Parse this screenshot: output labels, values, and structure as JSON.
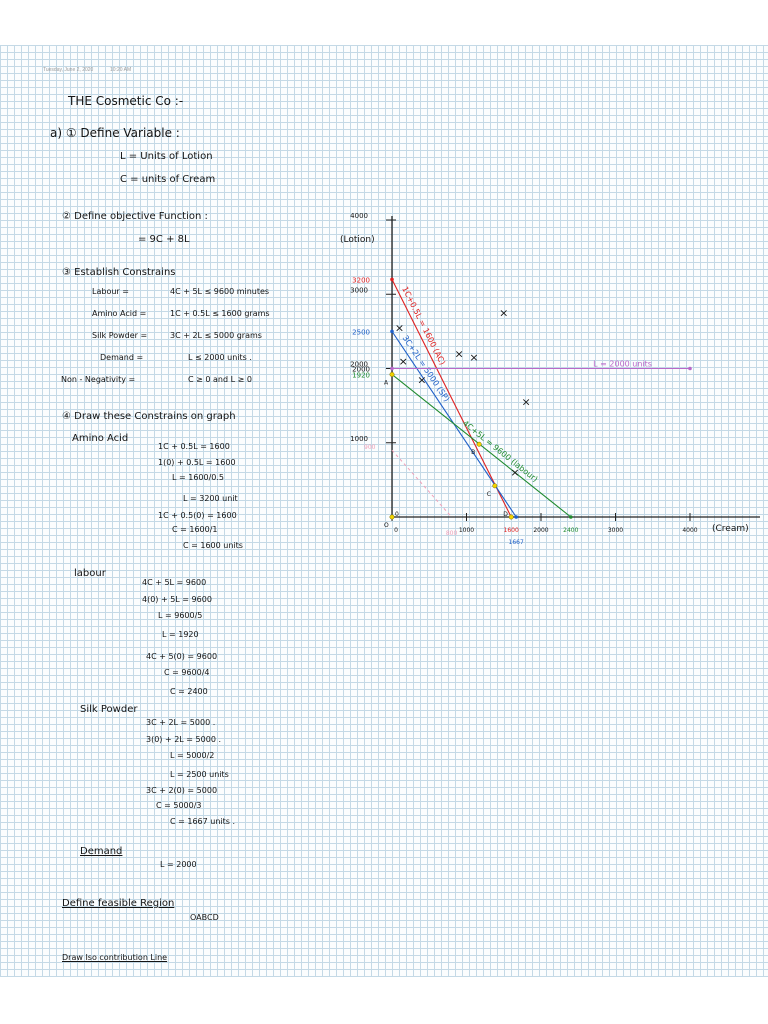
{
  "header": {
    "date": "Tuesday, June 2, 2020",
    "time": "10:20 AM"
  },
  "title": "THE Cosmetic Co :-",
  "section_a": {
    "heading": "a) ① Define Variable :",
    "var_l": "L = Units of Lotion",
    "var_c": "C = units of Cream"
  },
  "section_2": {
    "heading": "② Define objective Function :",
    "objective": "= 9C + 8L"
  },
  "section_3": {
    "heading": "③ Establish Constrains",
    "rows": [
      {
        "name": "Labour =",
        "expr": "4C + 5L  ≤ 9600 minutes"
      },
      {
        "name": "Amino Acid =",
        "expr": "1C + 0.5L  ≤  1600 grams"
      },
      {
        "name": "Silk Powder =",
        "expr": "3C + 2L  ≤  5000 grams"
      },
      {
        "name": "Demand  =",
        "expr": "L ≤ 2000 units ."
      },
      {
        "name": "Non - Negativity  =",
        "expr": "C ≥ 0  and  L ≥ 0"
      }
    ]
  },
  "section_4": {
    "heading": "④ Draw these Constrains on graph",
    "amino_title": "Amino Acid",
    "amino_lines": [
      "1C + 0.5L = 1600",
      "1(0) + 0.5L = 1600",
      "L = 1600/0.5",
      "L = 3200 unit",
      "1C + 0.5(0) = 1600",
      "C = 1600/1",
      "C = 1600 units"
    ],
    "labour_title": "labour",
    "labour_lines": [
      "4C + 5L = 9600",
      "4(0) + 5L = 9600",
      "L = 9600/5",
      "L = 1920",
      "4C + 5(0) = 9600",
      "C = 9600/4",
      "C = 2400"
    ],
    "silk_title": "Silk Powder",
    "silk_lines": [
      "3C + 2L = 5000 .",
      "3(0) + 2L = 5000 .",
      "L = 5000/2",
      "L = 2500 units",
      "3C + 2(0) = 5000",
      "C = 5000/3",
      "C = 1667 units ."
    ],
    "demand_title": "Demand",
    "demand_line": "L = 2000"
  },
  "feasible": {
    "heading": "Define feasible Region",
    "value": "OABCD"
  },
  "iso": {
    "heading": "Draw Iso contribution Line"
  },
  "chart_data": {
    "type": "line",
    "xlabel": "(Cream)",
    "ylabel": "(Lotion)",
    "xlim": [
      0,
      4000
    ],
    "ylim": [
      0,
      4000
    ],
    "x_ticks": [
      "0",
      "1000",
      "2000",
      "3000",
      "4000"
    ],
    "y_ticks": [
      "1000",
      "2000",
      "3000",
      "4000"
    ],
    "series": [
      {
        "name": "1C+0.5L = 1600 (AC)",
        "color": "#e02020",
        "points": [
          [
            0,
            3200
          ],
          [
            1600,
            0
          ]
        ]
      },
      {
        "name": "3C+2L = 5000 (SP)",
        "color": "#1e5fc8",
        "points": [
          [
            0,
            2500
          ],
          [
            1667,
            0
          ]
        ]
      },
      {
        "name": "4C+5L = 9600 (labour)",
        "color": "#1f8a2e",
        "points": [
          [
            0,
            1920
          ],
          [
            2400,
            0
          ]
        ]
      },
      {
        "name": "L = 2000 units",
        "color": "#b868c8",
        "points": [
          [
            0,
            2000
          ],
          [
            4000,
            2000
          ]
        ]
      }
    ],
    "iso_line": {
      "color": "#f0a0b8",
      "points": [
        [
          0,
          900
        ],
        [
          800,
          0
        ]
      ],
      "y_label": "900",
      "x_label": "800"
    },
    "intercept_labels": [
      {
        "text": "3200",
        "value": 3200,
        "axis": "y",
        "color": "#e02020"
      },
      {
        "text": "2500",
        "value": 2500,
        "axis": "y",
        "color": "#1e5fc8"
      },
      {
        "text": "2000",
        "value": 2000,
        "axis": "y",
        "color": "#141414"
      },
      {
        "text": "1920",
        "value": 1920,
        "axis": "y",
        "color": "#1f8a2e"
      },
      {
        "text": "1600",
        "value": 1600,
        "axis": "x",
        "color": "#e02020"
      },
      {
        "text": "1667",
        "value": 1667,
        "axis": "x",
        "color": "#1e5fc8"
      },
      {
        "text": "2400",
        "value": 2400,
        "axis": "x",
        "color": "#1f8a2e"
      }
    ],
    "points": [
      {
        "name": "O",
        "x": 0,
        "y": 0
      },
      {
        "name": "A",
        "x": 0,
        "y": 1920
      },
      {
        "name": "B",
        "x": 1170,
        "y": 980
      },
      {
        "name": "C",
        "x": 1380,
        "y": 420
      },
      {
        "name": "D",
        "x": 1600,
        "y": 0
      }
    ],
    "x_marks": [
      [
        100,
        2500
      ],
      [
        900,
        2150
      ],
      [
        400,
        1800
      ],
      [
        1100,
        2100
      ],
      [
        1500,
        2700
      ],
      [
        1800,
        1500
      ],
      [
        1650,
        550
      ],
      [
        150,
        2050
      ]
    ],
    "grid": true
  }
}
